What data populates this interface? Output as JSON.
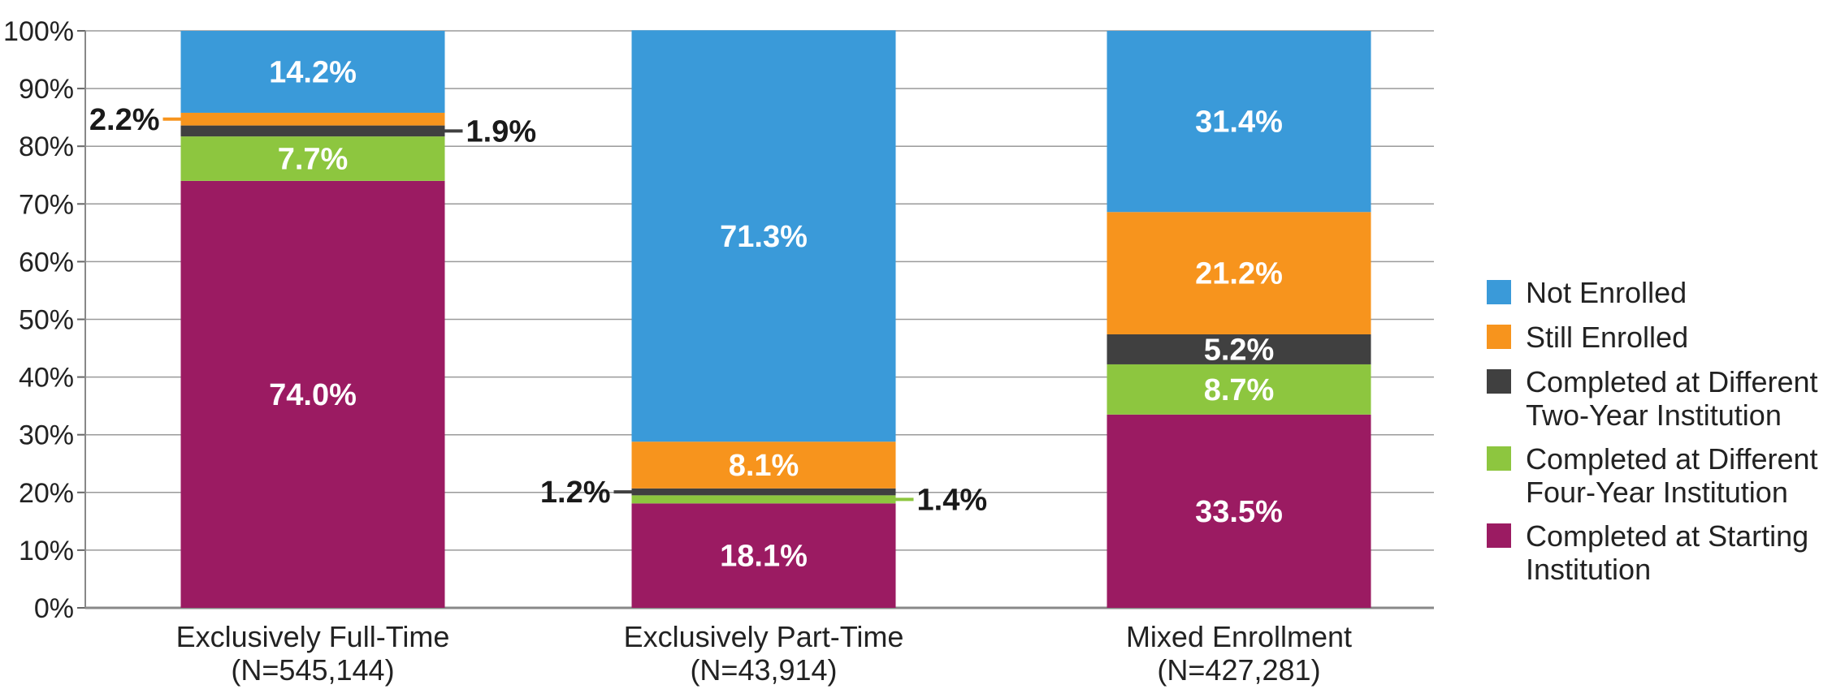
{
  "chart_data": {
    "type": "stacked-bar",
    "title": "",
    "xlabel": "",
    "ylabel": "",
    "ylim": [
      0,
      100
    ],
    "y_ticks": [
      "0%",
      "10%",
      "20%",
      "30%",
      "40%",
      "50%",
      "60%",
      "70%",
      "80%",
      "90%",
      "100%"
    ],
    "grid": true,
    "legend_position": "right",
    "categories": [
      {
        "name": "Exclusively Full-Time",
        "n": "(N=545,144)"
      },
      {
        "name": "Exclusively Part-Time",
        "n": "(N=43,914)"
      },
      {
        "name": "Mixed Enrollment",
        "n": "(N=427,281)"
      }
    ],
    "series": [
      {
        "name": "Completed at Starting Institution",
        "legend_lines": [
          "Completed at Starting",
          "Institution"
        ],
        "color": "#9B1B62",
        "values": [
          74.0,
          18.1,
          33.5
        ],
        "labels": [
          "74.0%",
          "18.1%",
          "33.5%"
        ]
      },
      {
        "name": "Completed at Different Four-Year Institution",
        "legend_lines": [
          "Completed at Different",
          "Four-Year Institution"
        ],
        "color": "#8DC63F",
        "values": [
          7.7,
          1.4,
          8.7
        ],
        "labels": [
          "7.7%",
          "1.4%",
          "8.7%"
        ]
      },
      {
        "name": "Completed at Different Two-Year Institution",
        "legend_lines": [
          "Completed at Different",
          "Two-Year Institution"
        ],
        "color": "#404040",
        "values": [
          1.9,
          1.2,
          5.2
        ],
        "labels": [
          "1.9%",
          "1.2%",
          "5.2%"
        ]
      },
      {
        "name": "Still Enrolled",
        "legend_lines": [
          "Still Enrolled"
        ],
        "color": "#F7941D",
        "values": [
          2.2,
          8.1,
          21.2
        ],
        "labels": [
          "2.2%",
          "8.1%",
          "21.2%"
        ]
      },
      {
        "name": "Not Enrolled",
        "legend_lines": [
          "Not Enrolled"
        ],
        "color": "#3A9AD9",
        "values": [
          14.2,
          71.3,
          31.4
        ],
        "labels": [
          "14.2%",
          "71.3%",
          "31.4%"
        ]
      }
    ],
    "legend_order": [
      "Not Enrolled",
      "Still Enrolled",
      "Completed at Different Two-Year Institution",
      "Completed at Different Four-Year Institution",
      "Completed at Starting Institution"
    ],
    "callouts": [
      {
        "bar": 0,
        "series": "Still Enrolled",
        "side": "left"
      },
      {
        "bar": 0,
        "series": "Completed at Different Two-Year Institution",
        "side": "right"
      },
      {
        "bar": 1,
        "series": "Completed at Different Two-Year Institution",
        "side": "left"
      },
      {
        "bar": 1,
        "series": "Completed at Different Four-Year Institution",
        "side": "right"
      }
    ]
  }
}
